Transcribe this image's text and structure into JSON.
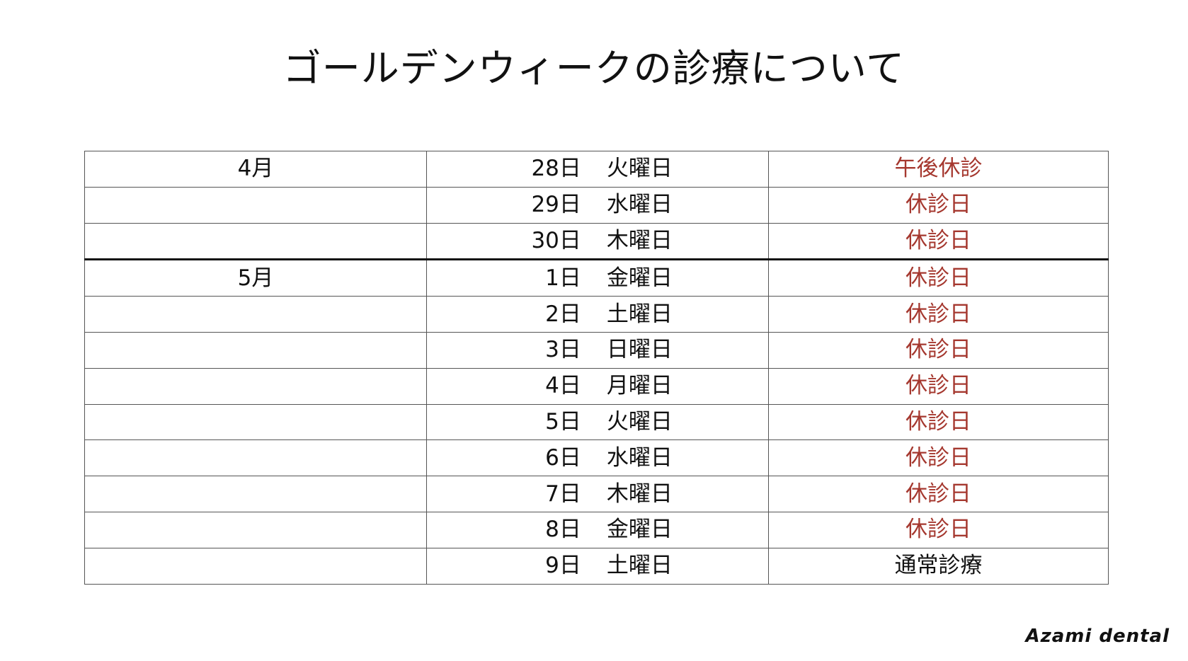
{
  "title": "ゴールデンウィークの診療について",
  "colors": {
    "closed": "#a5382f",
    "normal": "#111111",
    "border": "#555555"
  },
  "rows": [
    {
      "month": "4月",
      "day": "28日",
      "weekday": "火曜日",
      "status": "午後休診",
      "status_type": "closed"
    },
    {
      "month": "",
      "day": "29日",
      "weekday": "水曜日",
      "status": "休診日",
      "status_type": "closed"
    },
    {
      "month": "",
      "day": "30日",
      "weekday": "木曜日",
      "status": "休診日",
      "status_type": "closed"
    },
    {
      "month": "5月",
      "day": "1日",
      "weekday": "金曜日",
      "status": "休診日",
      "status_type": "closed"
    },
    {
      "month": "",
      "day": "2日",
      "weekday": "土曜日",
      "status": "休診日",
      "status_type": "closed"
    },
    {
      "month": "",
      "day": "3日",
      "weekday": "日曜日",
      "status": "休診日",
      "status_type": "closed"
    },
    {
      "month": "",
      "day": "4日",
      "weekday": "月曜日",
      "status": "休診日",
      "status_type": "closed"
    },
    {
      "month": "",
      "day": "5日",
      "weekday": "火曜日",
      "status": "休診日",
      "status_type": "closed"
    },
    {
      "month": "",
      "day": "6日",
      "weekday": "水曜日",
      "status": "休診日",
      "status_type": "closed"
    },
    {
      "month": "",
      "day": "7日",
      "weekday": "木曜日",
      "status": "休診日",
      "status_type": "closed"
    },
    {
      "month": "",
      "day": "8日",
      "weekday": "金曜日",
      "status": "休診日",
      "status_type": "closed"
    },
    {
      "month": "",
      "day": "9日",
      "weekday": "土曜日",
      "status": "通常診療",
      "status_type": "normal"
    }
  ],
  "footer": {
    "brand": "Azami dental"
  }
}
